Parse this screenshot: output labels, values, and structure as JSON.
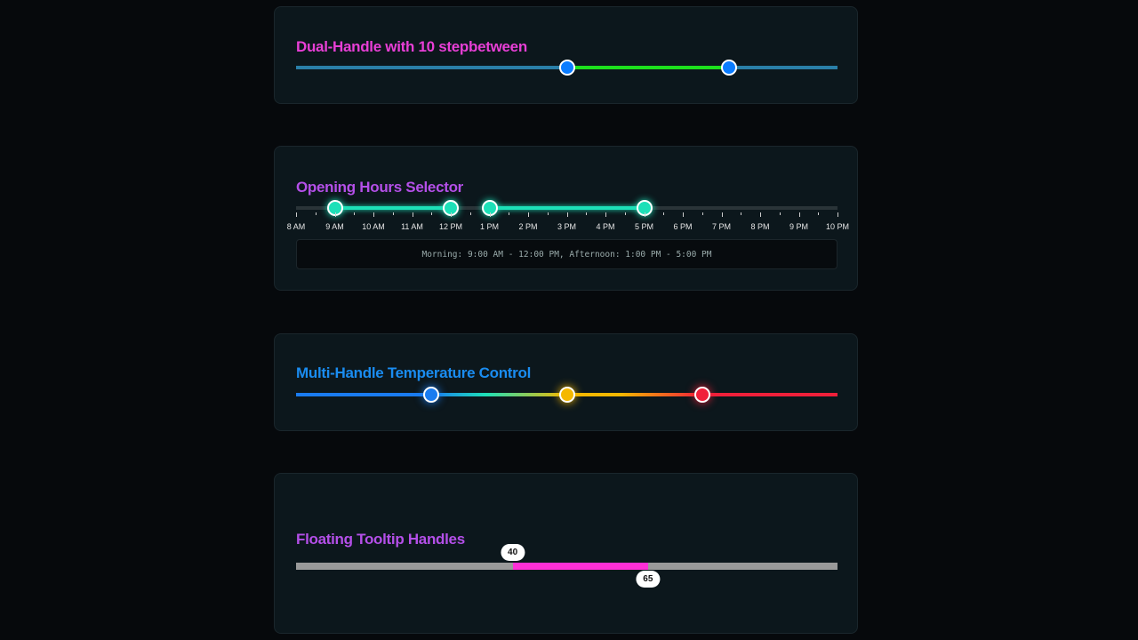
{
  "dual": {
    "title": "Dual-Handle with 10 stepbetween",
    "min": 0,
    "max": 100,
    "values": [
      50,
      80
    ],
    "colors": {
      "title": "#e83fd6",
      "track": "#2a7fa8",
      "fill": "#1de01d",
      "handle": "#0a7cff"
    }
  },
  "hours": {
    "title": "Opening Hours Selector",
    "start_hour": 8,
    "end_hour": 22,
    "labels": [
      "8 AM",
      "9 AM",
      "10 AM",
      "11 AM",
      "12 PM",
      "1 PM",
      "2 PM",
      "3 PM",
      "4 PM",
      "5 PM",
      "6 PM",
      "7 PM",
      "8 PM",
      "9 PM",
      "10 PM"
    ],
    "ranges": [
      [
        9,
        12
      ],
      [
        13,
        17
      ]
    ],
    "summary": "Morning: 9:00 AM - 12:00 PM, Afternoon: 1:00 PM - 5:00 PM",
    "colors": {
      "title": "#b44fe8",
      "fill": "#1de0b8"
    }
  },
  "temp": {
    "title": "Multi-Handle Temperature Control",
    "values": [
      25,
      50,
      75
    ],
    "handle_colors": [
      "#1a7cf0",
      "#f5b800",
      "#f0203a"
    ],
    "colors": {
      "title": "#1a8cf0"
    }
  },
  "tooltip": {
    "title": "Floating Tooltip Handles",
    "min": 0,
    "max": 100,
    "values": [
      40,
      65
    ],
    "labels": [
      "40",
      "65"
    ],
    "colors": {
      "title": "#b44fe8",
      "track": "#9a9a9a",
      "fill": "#ff2fd6"
    }
  }
}
